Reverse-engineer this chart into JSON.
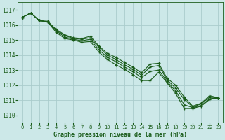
{
  "title": "Graphe pression niveau de la mer (hPa)",
  "background_color": "#cce8e8",
  "grid_color": "#aacccc",
  "line_color": "#1a5c1a",
  "xlim": [
    -0.5,
    23.5
  ],
  "ylim": [
    1009.5,
    1017.5
  ],
  "yticks": [
    1010,
    1011,
    1012,
    1013,
    1014,
    1015,
    1016,
    1017
  ],
  "xticks": [
    0,
    1,
    2,
    3,
    4,
    5,
    6,
    7,
    8,
    9,
    10,
    11,
    12,
    13,
    14,
    15,
    16,
    17,
    18,
    19,
    20,
    21,
    22,
    23
  ],
  "series": [
    [
      1016.5,
      1016.8,
      1016.3,
      1016.2,
      1015.5,
      1015.1,
      1015.0,
      1014.85,
      1014.9,
      1014.2,
      1013.7,
      1013.35,
      1013.05,
      1012.7,
      1012.3,
      1012.3,
      1012.85,
      1012.15,
      1011.45,
      1010.45,
      1010.45,
      1010.6,
      1011.05,
      1011.15
    ],
    [
      1016.5,
      1016.8,
      1016.3,
      1016.2,
      1015.6,
      1015.2,
      1015.05,
      1014.95,
      1015.05,
      1014.35,
      1013.85,
      1013.55,
      1013.2,
      1012.9,
      1012.5,
      1012.9,
      1013.0,
      1012.25,
      1011.6,
      1010.7,
      1010.5,
      1010.65,
      1011.1,
      1011.15
    ],
    [
      1016.5,
      1016.8,
      1016.3,
      1016.2,
      1015.65,
      1015.3,
      1015.1,
      1015.05,
      1015.15,
      1014.5,
      1014.0,
      1013.7,
      1013.35,
      1013.05,
      1012.65,
      1013.2,
      1013.3,
      1012.35,
      1011.8,
      1011.05,
      1010.55,
      1010.75,
      1011.2,
      1011.15
    ],
    [
      1016.5,
      1016.8,
      1016.3,
      1016.25,
      1015.7,
      1015.35,
      1015.15,
      1015.1,
      1015.25,
      1014.6,
      1014.1,
      1013.85,
      1013.5,
      1013.2,
      1012.8,
      1013.4,
      1013.45,
      1012.45,
      1012.0,
      1011.2,
      1010.6,
      1010.8,
      1011.3,
      1011.15
    ]
  ]
}
